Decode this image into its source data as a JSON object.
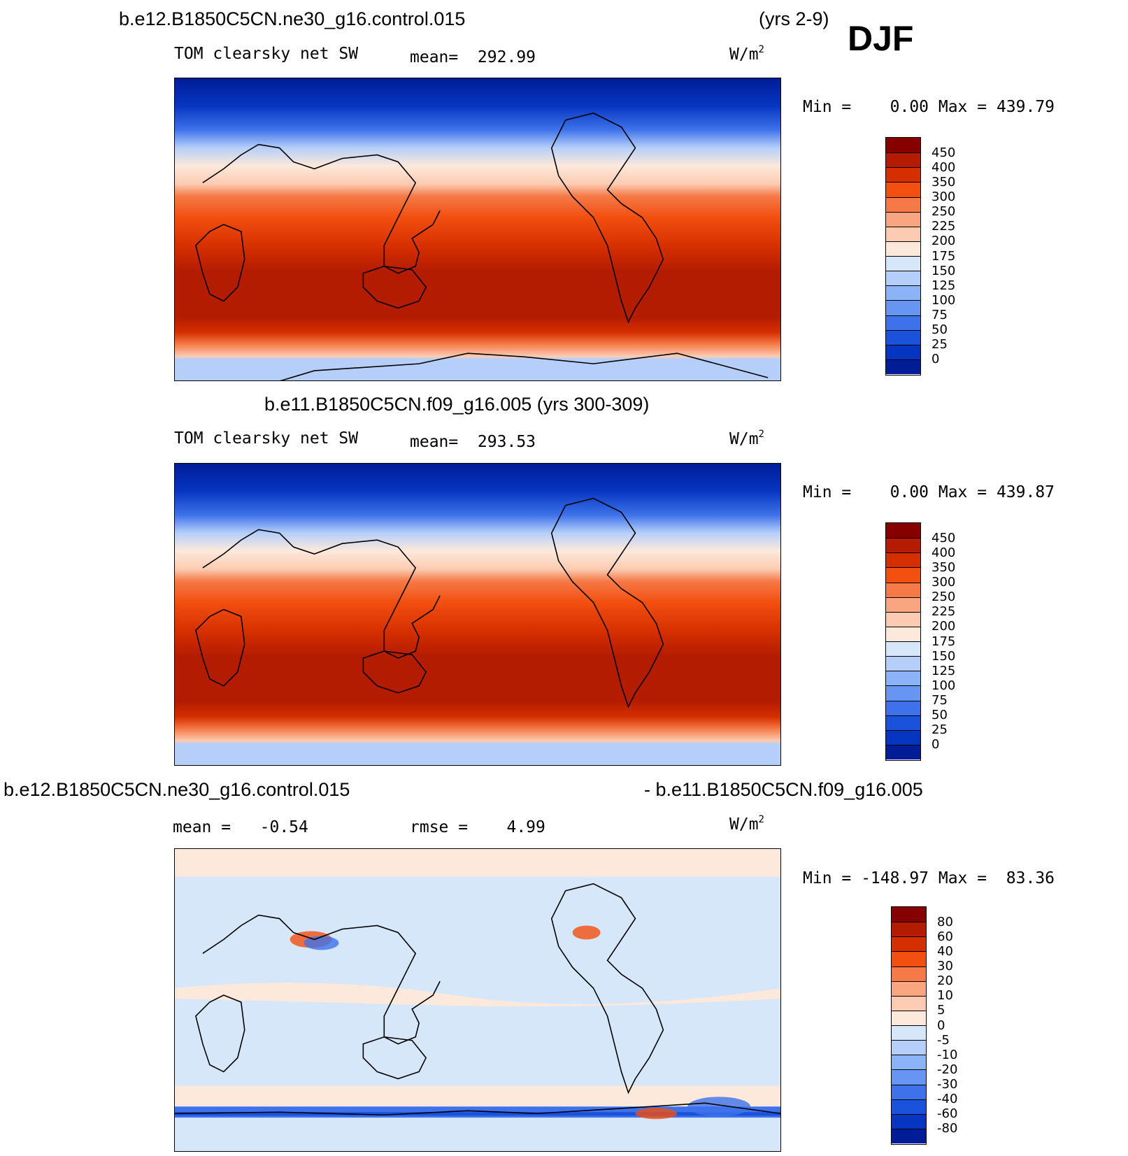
{
  "season": "DJF",
  "panels": [
    {
      "id": "test",
      "header_left": "b.e12.B1850C5CN.ne30_g16.control.015",
      "header_right": "(yrs 2-9)",
      "variable": "TOM clearsky net SW",
      "stat": "mean=  292.99",
      "unit": "W/m",
      "minmax": "Min =    0.00 Max = 439.79",
      "colorbar": {
        "labels": [
          "450",
          "400",
          "350",
          "300",
          "250",
          "225",
          "200",
          "175",
          "150",
          "125",
          "100",
          "75",
          "50",
          "25",
          "0"
        ],
        "colors": [
          "#870000",
          "#b31c00",
          "#d52e00",
          "#f24f10",
          "#f57a48",
          "#f9a57f",
          "#fccbb1",
          "#fde9db",
          "#d6e7fa",
          "#b6cffa",
          "#8cb3f7",
          "#6695f2",
          "#3d72ea",
          "#1b52dc",
          "#0635c1",
          "#001c96"
        ]
      }
    },
    {
      "id": "control",
      "header_left": "b.e11.B1850C5CN.f09_g16.005 (yrs 300-309)",
      "variable": "TOM clearsky net SW",
      "stat": "mean=  293.53",
      "unit": "W/m",
      "minmax": "Min =    0.00 Max = 439.87",
      "colorbar": {
        "labels": [
          "450",
          "400",
          "350",
          "300",
          "250",
          "225",
          "200",
          "175",
          "150",
          "125",
          "100",
          "75",
          "50",
          "25",
          "0"
        ],
        "colors": [
          "#870000",
          "#b31c00",
          "#d52e00",
          "#f24f10",
          "#f57a48",
          "#f9a57f",
          "#fccbb1",
          "#fde9db",
          "#d6e7fa",
          "#b6cffa",
          "#8cb3f7",
          "#6695f2",
          "#3d72ea",
          "#1b52dc",
          "#0635c1",
          "#001c96"
        ]
      }
    },
    {
      "id": "diff",
      "header_left": "b.e12.B1850C5CN.ne30_g16.control.015",
      "header_right": "- b.e11.B1850C5CN.f09_g16.005",
      "stat_mean": "mean =   -0.54",
      "stat_rmse": "rmse =    4.99",
      "unit": "W/m",
      "minmax": "Min = -148.97 Max =  83.36",
      "colorbar": {
        "labels": [
          "80",
          "60",
          "40",
          "30",
          "20",
          "10",
          "5",
          "0",
          "-5",
          "-10",
          "-20",
          "-30",
          "-40",
          "-60",
          "-80"
        ],
        "colors": [
          "#870000",
          "#b31c00",
          "#d52e00",
          "#f24f10",
          "#f57a48",
          "#f9a57f",
          "#fccbb1",
          "#fde9db",
          "#d6e7fa",
          "#b6cffa",
          "#8cb3f7",
          "#6695f2",
          "#3d72ea",
          "#1b52dc",
          "#0635c1",
          "#001c96"
        ]
      }
    }
  ]
}
